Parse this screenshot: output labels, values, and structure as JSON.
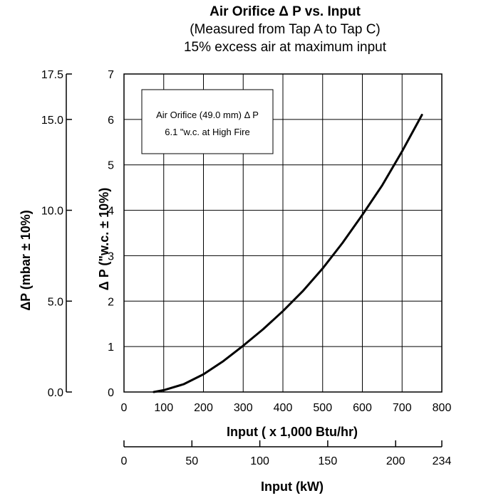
{
  "chart_data": {
    "type": "line",
    "title": "Air Orifice Δ P vs. Input",
    "subtitle_lines": [
      "(Measured from Tap A to Tap C)",
      "15% excess air at maximum input"
    ],
    "xlabel": "Input  ( x 1,000 Btu/hr)",
    "xlabel_secondary": "Input  (kW)",
    "ylabel": "Δ P (\"w.c. ± 10%)",
    "ylabel_secondary": "ΔP (mbar ± 10%)",
    "xlim": [
      0,
      800
    ],
    "ylim": [
      0,
      7
    ],
    "grid": true,
    "x_ticks": [
      0,
      100,
      200,
      300,
      400,
      500,
      600,
      700,
      800
    ],
    "x_tick_labels": [
      "0",
      "100",
      "200",
      "300",
      "400",
      "500",
      "600",
      "700",
      "800"
    ],
    "y_ticks": [
      0,
      1,
      2,
      3,
      4,
      5,
      6,
      7
    ],
    "y_tick_labels": [
      "0",
      "1",
      "2",
      "3",
      "4",
      "5",
      "6",
      "7"
    ],
    "secondary_x_ticks": [
      0,
      50,
      100,
      150,
      200,
      234
    ],
    "secondary_x_tick_labels": [
      "0",
      "50",
      "100",
      "150",
      "200",
      "234"
    ],
    "secondary_x_max": 234,
    "secondary_y_ticks": [
      0,
      5,
      10,
      15,
      17.5
    ],
    "secondary_y_tick_labels": [
      "0.0",
      "5.0",
      "10.0",
      "15.0",
      "17.5"
    ],
    "secondary_y_max": 17.5,
    "annotation_lines": [
      "Air Orifice (49.0 mm) Δ P",
      "6.1 \"w.c. at High Fire"
    ],
    "series": [
      {
        "x": [
          75,
          100,
          150,
          200,
          250,
          300,
          350,
          400,
          450,
          500,
          550,
          600,
          650,
          700,
          750
        ],
        "y": [
          0.0,
          0.04,
          0.17,
          0.39,
          0.68,
          1.02,
          1.38,
          1.78,
          2.22,
          2.72,
          3.28,
          3.9,
          4.55,
          5.3,
          6.1
        ]
      }
    ],
    "line_color": "#000000"
  }
}
